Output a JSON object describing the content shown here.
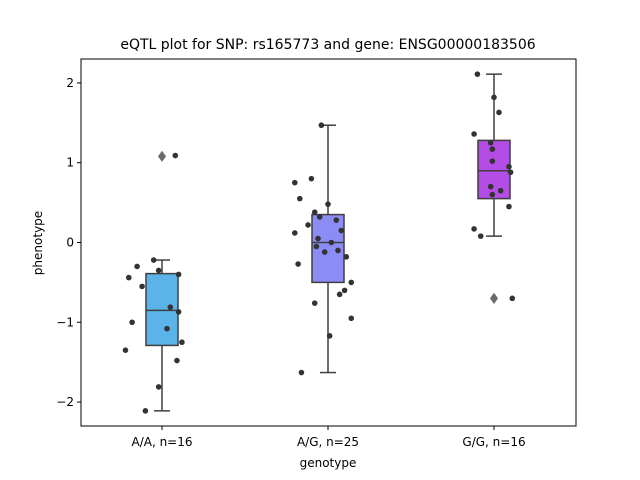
{
  "chart_data": {
    "type": "box",
    "title": "eQTL plot for SNP: rs165773 and gene: ENSG00000183506",
    "xlabel": "genotype",
    "ylabel": "phenotype",
    "ylim": [
      -2.3,
      2.3
    ],
    "yticks": [
      -2,
      -1,
      0,
      1,
      2
    ],
    "ytick_labels": [
      "−2",
      "−1",
      "0",
      "1",
      "2"
    ],
    "categories": [
      "A/A, n=16",
      "A/G, n=25",
      "G/G, n=16"
    ],
    "colors": [
      "#5ab4ea",
      "#8c8cf6",
      "#b44ce6"
    ],
    "boxes": [
      {
        "q1": -1.29,
        "median": -0.85,
        "q3": -0.39,
        "whisker_low": -2.11,
        "whisker_high": -0.22,
        "outliers": [
          1.08
        ]
      },
      {
        "q1": -0.5,
        "median": 0.0,
        "q3": 0.35,
        "whisker_low": -1.63,
        "whisker_high": 1.47,
        "outliers": []
      },
      {
        "q1": 0.55,
        "median": 0.9,
        "q3": 1.28,
        "whisker_low": 0.08,
        "whisker_high": 2.11,
        "outliers": [
          -0.7
        ]
      }
    ],
    "points": [
      [
        {
          "dx": 0.08,
          "y": 1.09
        },
        {
          "dx": -0.05,
          "y": -0.22
        },
        {
          "dx": -0.15,
          "y": -0.3
        },
        {
          "dx": -0.02,
          "y": -0.35
        },
        {
          "dx": 0.1,
          "y": -0.4
        },
        {
          "dx": -0.2,
          "y": -0.44
        },
        {
          "dx": 0.05,
          "y": -0.81
        },
        {
          "dx": 0.1,
          "y": -0.87
        },
        {
          "dx": -0.18,
          "y": -1.0
        },
        {
          "dx": 0.03,
          "y": -1.08
        },
        {
          "dx": 0.12,
          "y": -1.25
        },
        {
          "dx": -0.22,
          "y": -1.35
        },
        {
          "dx": 0.09,
          "y": -1.48
        },
        {
          "dx": -0.02,
          "y": -1.81
        },
        {
          "dx": -0.1,
          "y": -2.11
        },
        {
          "dx": -0.12,
          "y": -0.55
        }
      ],
      [
        {
          "dx": -0.04,
          "y": 1.47
        },
        {
          "dx": -0.1,
          "y": 0.8
        },
        {
          "dx": -0.2,
          "y": 0.75
        },
        {
          "dx": -0.17,
          "y": 0.55
        },
        {
          "dx": 0.0,
          "y": 0.48
        },
        {
          "dx": -0.08,
          "y": 0.38
        },
        {
          "dx": -0.05,
          "y": 0.32
        },
        {
          "dx": 0.05,
          "y": 0.28
        },
        {
          "dx": -0.12,
          "y": 0.22
        },
        {
          "dx": -0.2,
          "y": 0.12
        },
        {
          "dx": -0.06,
          "y": 0.05
        },
        {
          "dx": 0.02,
          "y": 0.0
        },
        {
          "dx": -0.07,
          "y": -0.05
        },
        {
          "dx": 0.06,
          "y": -0.1
        },
        {
          "dx": 0.11,
          "y": -0.18
        },
        {
          "dx": -0.18,
          "y": -0.27
        },
        {
          "dx": 0.14,
          "y": -0.5
        },
        {
          "dx": 0.1,
          "y": -0.6
        },
        {
          "dx": 0.07,
          "y": -0.65
        },
        {
          "dx": -0.08,
          "y": -0.76
        },
        {
          "dx": 0.14,
          "y": -0.95
        },
        {
          "dx": 0.01,
          "y": -1.17
        },
        {
          "dx": -0.16,
          "y": -1.63
        },
        {
          "dx": 0.08,
          "y": 0.15
        },
        {
          "dx": -0.02,
          "y": -0.12
        }
      ],
      [
        {
          "dx": -0.1,
          "y": 2.11
        },
        {
          "dx": 0.0,
          "y": 1.82
        },
        {
          "dx": 0.03,
          "y": 1.63
        },
        {
          "dx": -0.12,
          "y": 1.36
        },
        {
          "dx": -0.02,
          "y": 1.25
        },
        {
          "dx": -0.01,
          "y": 1.17
        },
        {
          "dx": -0.01,
          "y": 1.02
        },
        {
          "dx": 0.09,
          "y": 0.95
        },
        {
          "dx": 0.1,
          "y": 0.88
        },
        {
          "dx": -0.02,
          "y": 0.7
        },
        {
          "dx": 0.04,
          "y": 0.65
        },
        {
          "dx": -0.01,
          "y": 0.6
        },
        {
          "dx": 0.09,
          "y": 0.45
        },
        {
          "dx": -0.12,
          "y": 0.17
        },
        {
          "dx": -0.08,
          "y": 0.08
        },
        {
          "dx": 0.11,
          "y": -0.7
        }
      ]
    ]
  }
}
